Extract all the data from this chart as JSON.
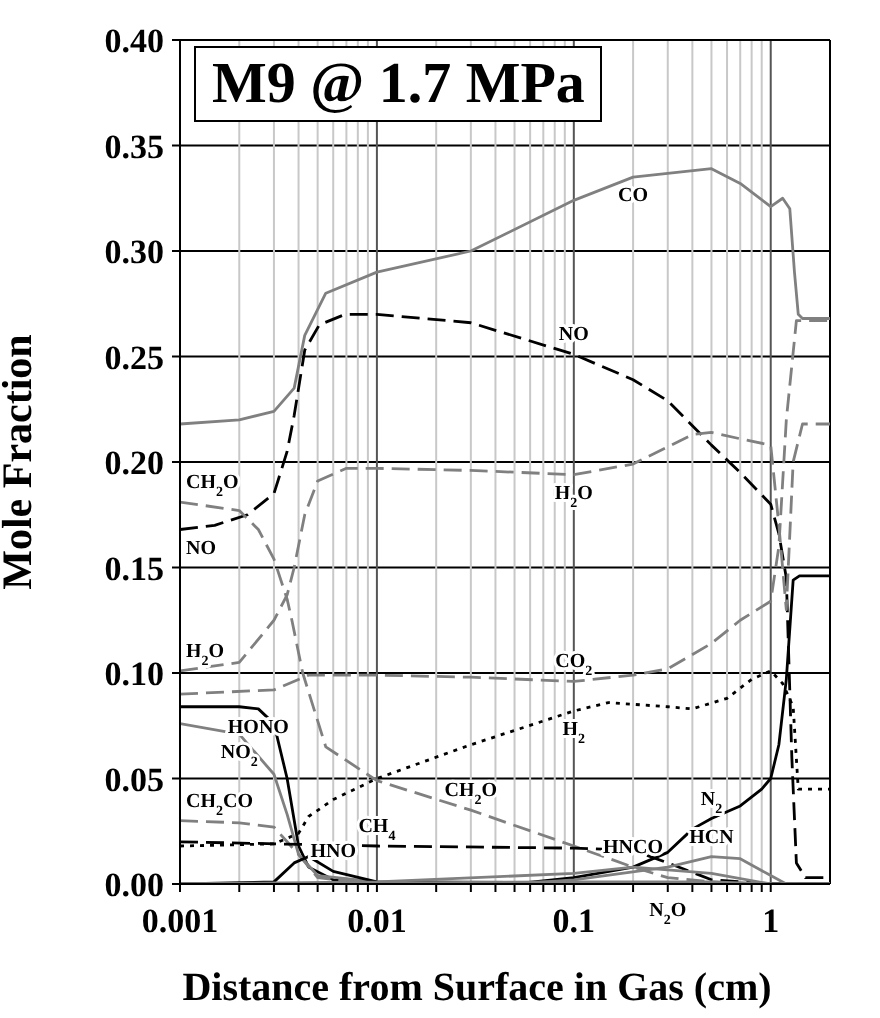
{
  "chart_data": {
    "type": "line",
    "title": "M9 @ 1.7 MPa",
    "xlabel": "Distance from Surface in Gas (cm)",
    "ylabel": "Mole Fraction",
    "log": "x",
    "grid": true,
    "marker": "none",
    "xlim": [
      0.001,
      2
    ],
    "ylim": [
      0,
      0.4
    ],
    "xticks": [
      0.001,
      {
        "value": 0.002,
        "label": null
      },
      {
        "value": 0.003,
        "label": null
      },
      {
        "value": 0.004,
        "label": null
      },
      {
        "value": 0.005,
        "label": null
      },
      {
        "value": 0.006,
        "label": null
      },
      {
        "value": 0.007,
        "label": null
      },
      {
        "value": 0.008,
        "label": null
      },
      {
        "value": 0.009,
        "label": null
      },
      0.01,
      {
        "value": 0.02,
        "label": null
      },
      {
        "value": 0.03,
        "label": null
      },
      {
        "value": 0.04,
        "label": null
      },
      {
        "value": 0.05,
        "label": null
      },
      {
        "value": 0.06,
        "label": null
      },
      {
        "value": 0.07,
        "label": null
      },
      {
        "value": 0.08,
        "label": null
      },
      {
        "value": 0.09,
        "label": null
      },
      0.1,
      {
        "value": 0.2,
        "label": null
      },
      {
        "value": 0.3,
        "label": null
      },
      {
        "value": 0.4,
        "label": null
      },
      {
        "value": 0.5,
        "label": null
      },
      {
        "value": 0.6,
        "label": null
      },
      {
        "value": 0.7,
        "label": null
      },
      {
        "value": 0.8,
        "label": null
      },
      {
        "value": 0.9,
        "label": null
      },
      1
    ],
    "yticks": [
      {
        "value": 0,
        "label": "0.00"
      },
      {
        "value": 0.05,
        "label": "0.05"
      },
      {
        "value": 0.1,
        "label": "0.10"
      },
      {
        "value": 0.15,
        "label": "0.15"
      },
      {
        "value": 0.2,
        "label": "0.20"
      },
      {
        "value": 0.25,
        "label": "0.25"
      },
      {
        "value": 0.3,
        "label": "0.30"
      },
      {
        "value": 0.35,
        "label": "0.35"
      },
      {
        "value": 0.4,
        "label": "0.40"
      }
    ],
    "series": [
      {
        "color": "#808080",
        "line_style": "solid",
        "x": [
          0.001,
          0.002,
          0.003,
          0.0038,
          0.0043,
          0.0055,
          0.01,
          0.03,
          0.1,
          0.2,
          0.5,
          0.7,
          1,
          1.15,
          1.25,
          1.32,
          1.38,
          1.45,
          2
        ],
        "values": [
          0.218,
          0.22,
          0.224,
          0.235,
          0.26,
          0.28,
          0.29,
          0.3,
          0.324,
          0.335,
          0.339,
          0.332,
          0.321,
          0.325,
          0.32,
          0.29,
          0.27,
          0.268,
          0.268
        ]
      },
      {
        "color": "#000000",
        "line_style": "dashed",
        "x": [
          0.001,
          0.0015,
          0.0022,
          0.003,
          0.0035,
          0.0038,
          0.0043,
          0.0051,
          0.0069,
          0.01,
          0.03,
          0.1,
          0.2,
          0.3,
          0.5,
          0.7,
          1,
          1.1,
          1.2,
          1.28,
          1.35,
          1.5,
          2
        ],
        "values": [
          0.168,
          0.17,
          0.175,
          0.185,
          0.205,
          0.222,
          0.253,
          0.265,
          0.27,
          0.27,
          0.266,
          0.251,
          0.239,
          0.229,
          0.208,
          0.195,
          0.18,
          0.166,
          0.145,
          0.06,
          0.01,
          0.003,
          0.003
        ]
      },
      {
        "color": "#808080",
        "line_style": "dashed",
        "x": [
          0.001,
          0.002,
          0.003,
          0.0035,
          0.0038,
          0.0043,
          0.005,
          0.007,
          0.01,
          0.03,
          0.1,
          0.2,
          0.4,
          0.5,
          0.7,
          1,
          1.1,
          1.2,
          1.3,
          1.45,
          2
        ],
        "values": [
          0.101,
          0.105,
          0.125,
          0.137,
          0.15,
          0.175,
          0.191,
          0.197,
          0.197,
          0.196,
          0.194,
          0.199,
          0.213,
          0.214,
          0.211,
          0.208,
          0.17,
          0.13,
          0.2,
          0.218,
          0.218
        ]
      },
      {
        "color": "#808080",
        "line_style": "dashed",
        "x": [
          0.001,
          0.002,
          0.0025,
          0.003,
          0.0035,
          0.0037,
          0.0042,
          0.0055,
          0.01,
          0.03,
          0.1,
          0.2,
          0.3,
          0.5,
          1,
          2
        ],
        "values": [
          0.181,
          0.177,
          0.168,
          0.154,
          0.135,
          0.125,
          0.1,
          0.065,
          0.049,
          0.035,
          0.018,
          0.008,
          0.003,
          0.001,
          0,
          0
        ]
      },
      {
        "color": "#808080",
        "line_style": "dashed",
        "x": [
          0.001,
          0.003,
          0.0045,
          0.01,
          0.03,
          0.1,
          0.2,
          0.3,
          0.5,
          0.7,
          1,
          1.1,
          1.2,
          1.35,
          2
        ],
        "values": [
          0.09,
          0.092,
          0.099,
          0.099,
          0.098,
          0.096,
          0.099,
          0.102,
          0.114,
          0.125,
          0.134,
          0.16,
          0.22,
          0.267,
          0.267
        ]
      },
      {
        "color": "#000000",
        "line_style": "dotted",
        "x": [
          0.001,
          0.003,
          0.004,
          0.0045,
          0.006,
          0.01,
          0.03,
          0.1,
          0.15,
          0.3,
          0.4,
          0.6,
          0.8,
          1,
          1.15,
          1.3,
          1.38,
          1.45,
          2
        ],
        "values": [
          0.018,
          0.019,
          0.024,
          0.032,
          0.04,
          0.05,
          0.066,
          0.082,
          0.086,
          0.084,
          0.083,
          0.088,
          0.097,
          0.101,
          0.095,
          0.084,
          0.045,
          0.045,
          0.045
        ]
      },
      {
        "color": "#000000",
        "line_style": "solid",
        "x": [
          0.001,
          0.05,
          0.1,
          0.2,
          0.3,
          0.4,
          0.5,
          0.7,
          0.9,
          1,
          1.1,
          1.2,
          1.3,
          1.4,
          2
        ],
        "values": [
          0,
          0,
          0.003,
          0.008,
          0.015,
          0.026,
          0.031,
          0.037,
          0.045,
          0.05,
          0.066,
          0.097,
          0.144,
          0.146,
          0.146
        ]
      },
      {
        "color": "#000000",
        "line_style": "solid",
        "x": [
          0.001,
          0.002,
          0.0025,
          0.003,
          0.0035,
          0.004,
          0.0045,
          0.006,
          0.01,
          2
        ],
        "values": [
          0.084,
          0.084,
          0.083,
          0.076,
          0.05,
          0.018,
          0.008,
          0.002,
          0,
          0
        ]
      },
      {
        "color": "#808080",
        "line_style": "solid",
        "x": [
          0.001,
          0.002,
          0.003,
          0.0035,
          0.004,
          0.005,
          0.01,
          2
        ],
        "values": [
          0.076,
          0.071,
          0.052,
          0.033,
          0.014,
          0.004,
          0.001,
          0
        ]
      },
      {
        "color": "#808080",
        "line_style": "dashed",
        "x": [
          0.001,
          0.002,
          0.003,
          0.0035,
          0.004,
          0.005,
          0.01,
          2
        ],
        "values": [
          0.03,
          0.029,
          0.027,
          0.02,
          0.014,
          0.003,
          0,
          0
        ]
      },
      {
        "color": "#000000",
        "line_style": "solid",
        "x": [
          0.001,
          0.003,
          0.0038,
          0.0045,
          0.006,
          0.01,
          2
        ],
        "values": [
          0,
          0.001,
          0.01,
          0.013,
          0.006,
          0.001,
          0
        ]
      },
      {
        "color": "#000000",
        "line_style": "dashed",
        "x": [
          0.001,
          0.01,
          0.1,
          0.2,
          0.3,
          0.5,
          1,
          2
        ],
        "values": [
          0.02,
          0.018,
          0.017,
          0.016,
          0.01,
          0.002,
          0,
          0
        ]
      },
      {
        "color": "#808080",
        "line_style": "solid",
        "x": [
          0.001,
          0.01,
          0.1,
          0.2,
          0.5,
          1,
          2
        ],
        "values": [
          0,
          0.001,
          0.005,
          0.008,
          0.005,
          0,
          0
        ]
      },
      {
        "color": "#808080",
        "line_style": "solid",
        "x": [
          0.001,
          0.05,
          0.1,
          0.3,
          0.5,
          0.7,
          1,
          1.2,
          2
        ],
        "values": [
          0,
          0,
          0.002,
          0.008,
          0.013,
          0.012,
          0.004,
          0,
          0
        ]
      },
      {
        "color": "#808080",
        "line_style": "solid",
        "x": [
          0.001,
          0.1,
          0.3,
          0.5,
          1,
          2
        ],
        "values": [
          0,
          0.001,
          0.001,
          0.001,
          0,
          0
        ]
      }
    ],
    "annotations": [
      {
        "text": "CO",
        "x": 0.2,
        "y": 0.335
      },
      {
        "text": "NO",
        "x": 0.1,
        "y": 0.251
      },
      {
        "text": "H$_{2}$O",
        "x": 0.1,
        "y": 0.194
      },
      {
        "text": "CH$_{2}$O",
        "x": 0.001,
        "y": 0.181
      },
      {
        "text": "NO",
        "x": 0.001,
        "y": 0.168
      },
      {
        "text": "H$_{2}$O",
        "x": 0.001,
        "y": 0.101
      },
      {
        "text": "CO$_{2}$",
        "x": 0.1,
        "y": 0.096
      },
      {
        "text": "H$_{2}$",
        "x": 0.1,
        "y": 0.082
      },
      {
        "text": "HONO",
        "x": 0.0025,
        "y": 0.083
      },
      {
        "text": "NO$_{2}$",
        "x": 0.002,
        "y": 0.071
      },
      {
        "text": "CH$_{2}$CO",
        "x": 0.001,
        "y": 0.03
      },
      {
        "text": "CH$_{2}$O",
        "x": 0.03,
        "y": 0.035
      },
      {
        "text": "HNO",
        "x": 0.006,
        "y": 0.006
      },
      {
        "text": "HNCO",
        "x": 0.2,
        "y": 0.008
      },
      {
        "text": "CH$_{4}$",
        "x": 0.01,
        "y": 0.018
      },
      {
        "text": "N$_{2}$",
        "x": 0.5,
        "y": 0.031
      },
      {
        "text": "HCN",
        "x": 0.5,
        "y": 0.013
      },
      {
        "text": "N$_{2}$O",
        "x": 0.3,
        "y": 0.001
      }
    ]
  }
}
